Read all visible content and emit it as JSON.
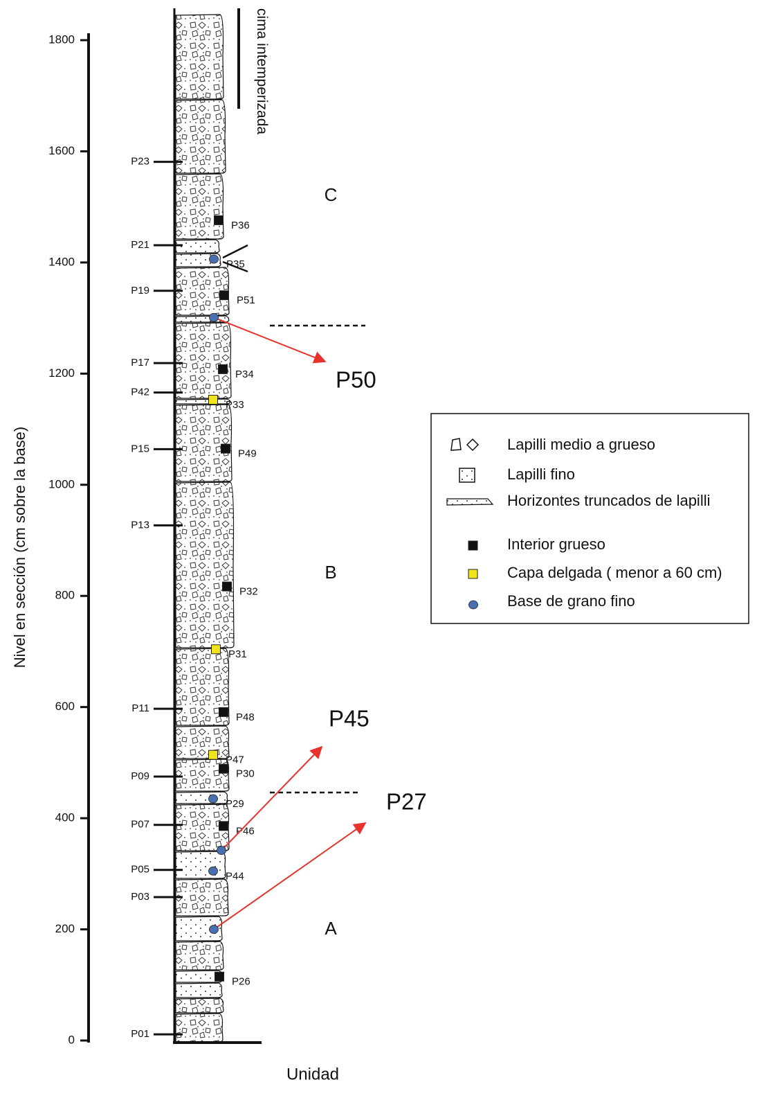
{
  "axis": {
    "label": "Nivel en sección (cm sobre la base)",
    "ylim": [
      0,
      1800
    ],
    "yticks": [
      0,
      200,
      400,
      600,
      800,
      1000,
      1200,
      1400,
      1600,
      1800
    ]
  },
  "x_label": "Unidad",
  "annotation": "cima intemperizada",
  "units": [
    "A",
    "B",
    "C"
  ],
  "legend": [
    "Lapilli medio a grueso",
    "Lapilli fino",
    "Horizontes truncados de lapilli"
  ],
  "markers": [
    {
      "label": "Interior grueso",
      "color": "#111111",
      "shape": "square"
    },
    {
      "label": "Capa delgada ( menor a 60 cm)",
      "color": "#f2e41c",
      "shape": "square"
    },
    {
      "label": "Base de grano fino",
      "color": "#4a6fb0",
      "shape": "circle"
    }
  ],
  "profile_levels": [
    {
      "label": "P01",
      "level": 11
    },
    {
      "label": "P03",
      "level": 258
    },
    {
      "label": "P05",
      "level": 307
    },
    {
      "label": "P07",
      "level": 388
    },
    {
      "label": "P09",
      "level": 475
    },
    {
      "label": "P11",
      "level": 597
    },
    {
      "label": "P13",
      "level": 927
    },
    {
      "label": "P15",
      "level": 1064
    },
    {
      "label": "P42",
      "level": 1166
    },
    {
      "label": "P17",
      "level": 1219
    },
    {
      "label": "P19",
      "level": 1349
    },
    {
      "label": "P21",
      "level": 1431
    },
    {
      "label": "P23",
      "level": 1581
    }
  ],
  "samples": [
    {
      "label": "P26",
      "marker": 0,
      "level": 115
    },
    {
      "label": "P44",
      "marker": 2,
      "level": 305
    },
    {
      "label": "P46",
      "marker": 0,
      "level": 386
    },
    {
      "label": "P29",
      "marker": 2,
      "level": 435
    },
    {
      "label": "P30",
      "marker": 0,
      "level": 489
    },
    {
      "label": "P47",
      "marker": 1,
      "level": 514
    },
    {
      "label": "P48",
      "marker": 0,
      "level": 591
    },
    {
      "label": "P31",
      "marker": 1,
      "level": 704
    },
    {
      "label": "P32",
      "marker": 0,
      "level": 817
    },
    {
      "label": "P49",
      "marker": 0,
      "level": 1065
    },
    {
      "label": "P33",
      "marker": 1,
      "level": 1153
    },
    {
      "label": "P34",
      "marker": 0,
      "level": 1208
    },
    {
      "label": "P51",
      "marker": 0,
      "level": 1341
    },
    {
      "label": "P35",
      "marker": 2,
      "level": 1406
    },
    {
      "label": "P36",
      "marker": 0,
      "level": 1476
    }
  ],
  "highlighted": [
    {
      "label": "P27",
      "marker": 2,
      "level": 200
    },
    {
      "label": "P45",
      "marker": 2,
      "level": 342
    },
    {
      "label": "P50",
      "marker": 2,
      "level": 1301
    }
  ]
}
